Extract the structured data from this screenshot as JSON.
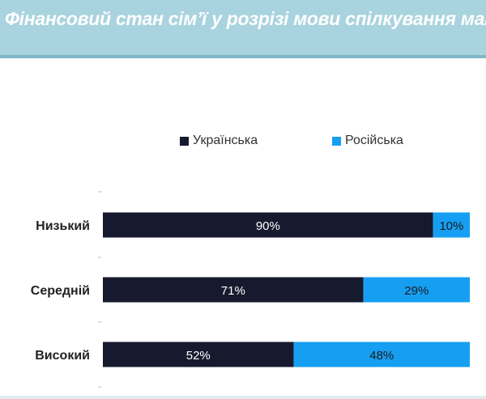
{
  "header": {
    "title": "Фінансовий стан сім’ї у розрізі мови спілкування мами"
  },
  "chart_data": {
    "type": "bar",
    "orientation": "horizontal",
    "stacked": true,
    "categories": [
      "Низький",
      "Середній",
      "Високий"
    ],
    "series": [
      {
        "name": "Українська",
        "values": [
          90,
          71,
          52
        ],
        "color": "#171a2e",
        "labelColor": "#ffffff"
      },
      {
        "name": "Російська",
        "values": [
          10,
          29,
          48
        ],
        "color": "#169ff2",
        "labelColor": "#1a1a1a"
      }
    ],
    "value_suffix": "%",
    "xlim": [
      0,
      100
    ],
    "legend": "top-center",
    "grid": false
  }
}
